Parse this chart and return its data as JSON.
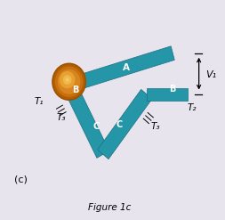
{
  "bg_color": "#e8e4ee",
  "teal_color": "#2496a8",
  "title": "Figure 1c",
  "label_c": "(c)",
  "label_A": "A",
  "label_B1": "B",
  "label_B2": "B",
  "label_C1": "C",
  "label_C2": "C",
  "label_T1": "T₁",
  "label_T2": "T₂",
  "label_T3a": "T₃",
  "label_T3b": "T₃",
  "label_V1": "V₁",
  "orange_inner": "#e8a020",
  "orange_outer": "#c07010",
  "orange_highlight": "#f0c060"
}
